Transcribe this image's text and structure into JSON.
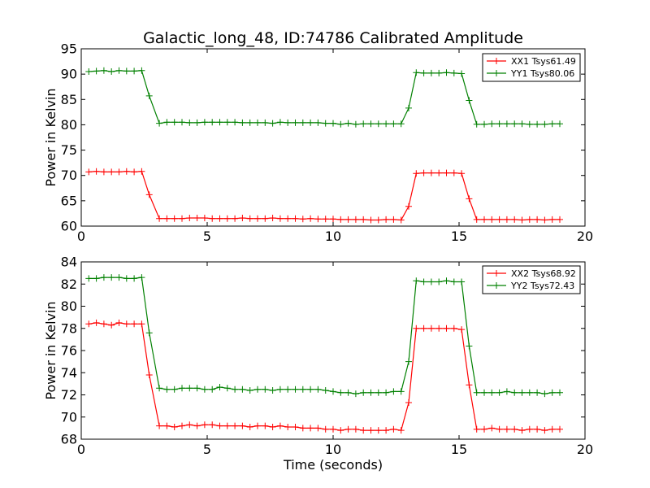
{
  "figure": {
    "title": "Galactic_long_48, ID:74786 Calibrated Amplitude"
  },
  "chart_data": [
    {
      "type": "line",
      "title": "Galactic_long_48, ID:74786 Calibrated Amplitude",
      "xlabel": "",
      "ylabel": "Power in Kelvin",
      "xlim": [
        0,
        20
      ],
      "ylim": [
        60,
        95
      ],
      "xticks": [
        0,
        5,
        10,
        15,
        20
      ],
      "yticks": [
        60,
        65,
        70,
        75,
        80,
        85,
        90,
        95
      ],
      "grid": false,
      "legend_position": "top-right",
      "x": [
        0.3,
        0.6,
        0.9,
        1.2,
        1.5,
        1.8,
        2.1,
        2.4,
        2.7,
        3.1,
        3.4,
        3.7,
        4.0,
        4.3,
        4.6,
        4.9,
        5.2,
        5.5,
        5.8,
        6.1,
        6.4,
        6.7,
        7.0,
        7.3,
        7.6,
        7.9,
        8.2,
        8.5,
        8.8,
        9.1,
        9.4,
        9.7,
        10.0,
        10.3,
        10.6,
        10.9,
        11.2,
        11.5,
        11.8,
        12.1,
        12.4,
        12.7,
        13.0,
        13.3,
        13.6,
        13.9,
        14.2,
        14.5,
        14.8,
        15.1,
        15.4,
        15.7,
        16.0,
        16.3,
        16.6,
        16.9,
        17.2,
        17.5,
        17.8,
        18.1,
        18.4,
        18.7,
        19.0
      ],
      "series": [
        {
          "name": "XX1 Tsys61.49",
          "color": "#ff0000",
          "values": [
            70.7,
            70.8,
            70.7,
            70.7,
            70.7,
            70.8,
            70.7,
            70.8,
            66.2,
            61.5,
            61.5,
            61.5,
            61.5,
            61.6,
            61.6,
            61.6,
            61.5,
            61.5,
            61.5,
            61.5,
            61.6,
            61.5,
            61.5,
            61.5,
            61.6,
            61.5,
            61.5,
            61.5,
            61.4,
            61.5,
            61.4,
            61.4,
            61.4,
            61.3,
            61.3,
            61.3,
            61.3,
            61.2,
            61.2,
            61.3,
            61.3,
            61.2,
            63.9,
            70.4,
            70.5,
            70.5,
            70.5,
            70.5,
            70.5,
            70.4,
            65.4,
            61.3,
            61.3,
            61.3,
            61.3,
            61.3,
            61.3,
            61.2,
            61.3,
            61.3,
            61.2,
            61.3,
            61.3
          ]
        },
        {
          "name": "YY1 Tsys80.06",
          "color": "#008000",
          "values": [
            90.5,
            90.6,
            90.7,
            90.5,
            90.7,
            90.6,
            90.6,
            90.7,
            85.7,
            80.3,
            80.5,
            80.5,
            80.5,
            80.4,
            80.4,
            80.5,
            80.5,
            80.5,
            80.5,
            80.5,
            80.4,
            80.4,
            80.4,
            80.4,
            80.3,
            80.5,
            80.4,
            80.4,
            80.4,
            80.4,
            80.4,
            80.3,
            80.3,
            80.1,
            80.3,
            80.1,
            80.2,
            80.2,
            80.2,
            80.2,
            80.2,
            80.2,
            83.3,
            90.3,
            90.2,
            90.2,
            90.2,
            90.3,
            90.2,
            90.1,
            84.8,
            80.1,
            80.1,
            80.2,
            80.2,
            80.2,
            80.2,
            80.2,
            80.1,
            80.1,
            80.1,
            80.2,
            80.2
          ]
        }
      ]
    },
    {
      "type": "line",
      "title": "",
      "xlabel": "Time (seconds)",
      "ylabel": "Power in Kelvin",
      "xlim": [
        0,
        20
      ],
      "ylim": [
        68,
        84
      ],
      "xticks": [
        0,
        5,
        10,
        15,
        20
      ],
      "yticks": [
        68,
        70,
        72,
        74,
        76,
        78,
        80,
        82,
        84
      ],
      "grid": false,
      "legend_position": "top-right",
      "x": [
        0.3,
        0.6,
        0.9,
        1.2,
        1.5,
        1.8,
        2.1,
        2.4,
        2.7,
        3.1,
        3.4,
        3.7,
        4.0,
        4.3,
        4.6,
        4.9,
        5.2,
        5.5,
        5.8,
        6.1,
        6.4,
        6.7,
        7.0,
        7.3,
        7.6,
        7.9,
        8.2,
        8.5,
        8.8,
        9.1,
        9.4,
        9.7,
        10.0,
        10.3,
        10.6,
        10.9,
        11.2,
        11.5,
        11.8,
        12.1,
        12.4,
        12.7,
        13.0,
        13.3,
        13.6,
        13.9,
        14.2,
        14.5,
        14.8,
        15.1,
        15.4,
        15.7,
        16.0,
        16.3,
        16.6,
        16.9,
        17.2,
        17.5,
        17.8,
        18.1,
        18.4,
        18.7,
        19.0
      ],
      "series": [
        {
          "name": "XX2 Tsys68.92",
          "color": "#ff0000",
          "values": [
            78.4,
            78.5,
            78.4,
            78.3,
            78.5,
            78.4,
            78.4,
            78.4,
            73.8,
            69.2,
            69.2,
            69.1,
            69.2,
            69.3,
            69.2,
            69.3,
            69.3,
            69.2,
            69.2,
            69.2,
            69.2,
            69.1,
            69.2,
            69.2,
            69.1,
            69.2,
            69.1,
            69.1,
            69.0,
            69.0,
            69.0,
            68.9,
            68.9,
            68.8,
            68.9,
            68.9,
            68.8,
            68.8,
            68.8,
            68.8,
            68.9,
            68.8,
            71.3,
            78.0,
            78.0,
            78.0,
            78.0,
            78.0,
            78.0,
            77.9,
            72.9,
            68.9,
            68.9,
            69.0,
            68.9,
            68.9,
            68.9,
            68.8,
            68.9,
            68.9,
            68.8,
            68.9,
            68.9
          ]
        },
        {
          "name": "YY2 Tsys72.43",
          "color": "#008000",
          "values": [
            82.5,
            82.5,
            82.6,
            82.6,
            82.6,
            82.5,
            82.5,
            82.6,
            77.6,
            72.6,
            72.5,
            72.5,
            72.6,
            72.6,
            72.6,
            72.5,
            72.5,
            72.7,
            72.6,
            72.5,
            72.5,
            72.4,
            72.5,
            72.5,
            72.4,
            72.5,
            72.5,
            72.5,
            72.5,
            72.5,
            72.5,
            72.4,
            72.3,
            72.2,
            72.2,
            72.1,
            72.2,
            72.2,
            72.2,
            72.2,
            72.3,
            72.3,
            75.0,
            82.3,
            82.2,
            82.2,
            82.2,
            82.3,
            82.2,
            82.2,
            76.4,
            72.2,
            72.2,
            72.2,
            72.2,
            72.3,
            72.2,
            72.2,
            72.2,
            72.2,
            72.1,
            72.2,
            72.2
          ]
        }
      ]
    }
  ]
}
